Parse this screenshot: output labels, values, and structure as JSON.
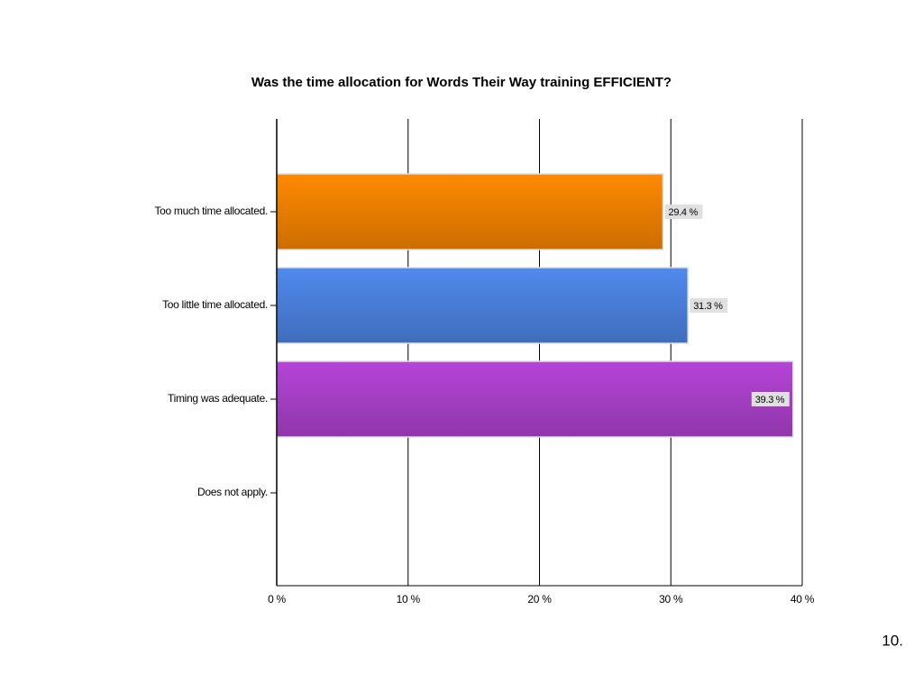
{
  "chart_data": {
    "type": "bar",
    "orientation": "horizontal",
    "title": "Was the time allocation for Words Their Way training EFFICIENT?",
    "categories": [
      "Too much time allocated.",
      "Too little time allocated.",
      "Timing was adequate.",
      "Does not apply."
    ],
    "values": [
      29.4,
      31.3,
      39.3,
      0
    ],
    "value_labels": [
      "29.4 %",
      "31.3 %",
      "39.3 %",
      null
    ],
    "colors": [
      "#f08000",
      "#4a80dc",
      "#a840c8",
      "#888888"
    ],
    "xlim": [
      0,
      40
    ],
    "xticks": [
      {
        "value": 0,
        "label": "0 %"
      },
      {
        "value": 10,
        "label": "10 %"
      },
      {
        "value": 20,
        "label": "20 %"
      },
      {
        "value": 30,
        "label": "30 %"
      },
      {
        "value": 40,
        "label": "40 %"
      }
    ],
    "grid": true
  },
  "page_number": "10."
}
